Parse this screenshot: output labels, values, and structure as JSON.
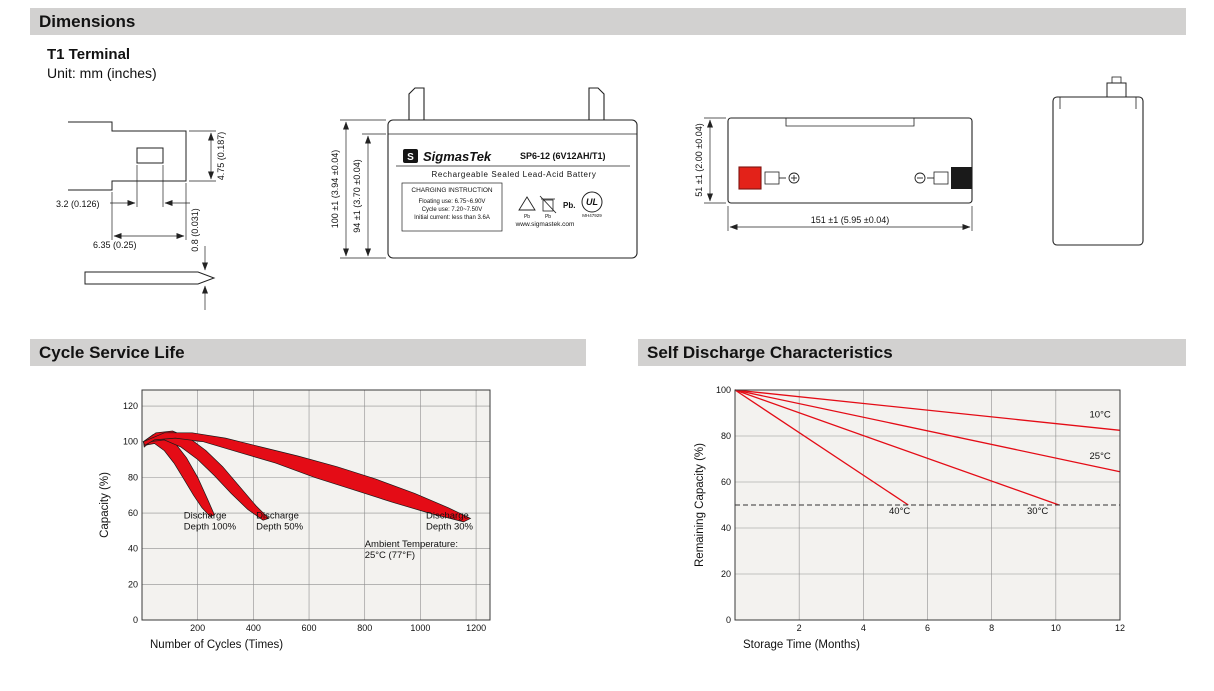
{
  "page": {
    "section_dimensions": "Dimensions",
    "section_cycle": "Cycle Service Life",
    "section_self_discharge": "Self Discharge Characteristics",
    "terminal_type": "T1 Terminal",
    "unit_note": "Unit: mm (inches)"
  },
  "drawings": {
    "terminal_detail": {
      "dim_height": "4.75 (0.187)",
      "dim_offset": "3.2 (0.126)",
      "dim_width": "6.35 (0.25)",
      "dim_thickness": "0.8 (0.031)"
    },
    "front_view": {
      "logo_letter": "S",
      "brand": "SigmasTek",
      "model": "SP6-12 (6V12AH/T1)",
      "product_type": "Rechargeable Sealed Lead-Acid Battery",
      "charging_title": "CHARGING INSTRUCTION",
      "charging_lines": [
        "Floating use: 6.75~6.90V",
        "Cycle use: 7.20~7.50V",
        "Initial current: less than 3.6A"
      ],
      "pb_small_1": "Pb",
      "pb_small_2": "Pb",
      "pb_bold": "Pb.",
      "ul_text": "UL",
      "ul_number": "MH47929",
      "website": "www.sigmastek.com",
      "dim_height_total": "100 ±1 (3.94 ±0.04)",
      "dim_height_case": "94 ±1 (3.70 ±0.04)"
    },
    "side_view": {
      "dim_height": "51 ±1 (2.00 ±0.04)",
      "dim_length": "151 ±1 (5.95 ±0.04)"
    }
  },
  "chart_data": [
    {
      "id": "cycle-service-life",
      "type": "area",
      "title": "Cycle Service Life",
      "xlabel": "Number of Cycles (Times)",
      "ylabel": "Capacity (%)",
      "xlim": [
        0,
        1250
      ],
      "ylim": [
        0,
        129
      ],
      "xticks": [
        200,
        400,
        600,
        800,
        1000,
        1200
      ],
      "yticks": [
        0,
        20,
        40,
        60,
        80,
        100,
        120
      ],
      "grid": true,
      "legend_position": "none",
      "color": "#e40c16",
      "bands": [
        {
          "name": "Discharge Depth 100%",
          "points": [
            [
              5,
              100
            ],
            [
              40,
              104
            ],
            [
              80,
              104
            ],
            [
              120,
              99
            ],
            [
              160,
              91
            ],
            [
              200,
              80
            ],
            [
              235,
              68
            ],
            [
              260,
              59
            ],
            [
              245,
              58
            ],
            [
              215,
              63
            ],
            [
              185,
              70
            ],
            [
              150,
              79
            ],
            [
              115,
              88
            ],
            [
              80,
              95
            ],
            [
              45,
              99
            ],
            [
              10,
              98
            ]
          ]
        },
        {
          "name": "Discharge Depth 50%",
          "points": [
            [
              5,
              100
            ],
            [
              50,
              105
            ],
            [
              110,
              106
            ],
            [
              170,
              102
            ],
            [
              230,
              95
            ],
            [
              290,
              86
            ],
            [
              350,
              75
            ],
            [
              410,
              64
            ],
            [
              455,
              57
            ],
            [
              435,
              56
            ],
            [
              380,
              62
            ],
            [
              320,
              71
            ],
            [
              260,
              81
            ],
            [
              200,
              90
            ],
            [
              140,
              97
            ],
            [
              80,
              101
            ],
            [
              30,
              100
            ],
            [
              8,
              97
            ]
          ]
        },
        {
          "name": "Discharge Depth 30%",
          "points": [
            [
              5,
              100
            ],
            [
              80,
              105
            ],
            [
              180,
              105
            ],
            [
              300,
              102
            ],
            [
              430,
              97
            ],
            [
              560,
              92
            ],
            [
              700,
              86
            ],
            [
              840,
              79
            ],
            [
              980,
              71
            ],
            [
              1100,
              63
            ],
            [
              1180,
              57
            ],
            [
              1155,
              55
            ],
            [
              1030,
              60
            ],
            [
              900,
              66
            ],
            [
              760,
              73
            ],
            [
              620,
              80
            ],
            [
              480,
              88
            ],
            [
              350,
              94
            ],
            [
              220,
              100
            ],
            [
              120,
              102
            ],
            [
              45,
              101
            ],
            [
              10,
              98
            ]
          ]
        }
      ],
      "annotations": [
        {
          "text_lines": [
            "Discharge",
            "Depth 100%"
          ],
          "x": 150,
          "y": 57
        },
        {
          "text_lines": [
            "Discharge",
            "Depth 50%"
          ],
          "x": 410,
          "y": 57
        },
        {
          "text_lines": [
            "Discharge",
            "Depth 30%"
          ],
          "x": 1020,
          "y": 57
        },
        {
          "text_lines": [
            "Ambient Temperature:",
            "25°C (77°F)"
          ],
          "x": 800,
          "y": 41
        }
      ]
    },
    {
      "id": "self-discharge",
      "type": "line",
      "title": "Self Discharge Characteristics",
      "xlabel": "Storage Time (Months)",
      "ylabel": "Remaining Capacity (%)",
      "xlim": [
        0,
        12
      ],
      "ylim": [
        0,
        100
      ],
      "xticks": [
        2,
        4,
        6,
        8,
        10,
        12
      ],
      "yticks": [
        0,
        20,
        40,
        60,
        80,
        100
      ],
      "grid": true,
      "legend_position": "inline-labels",
      "color": "#e40c16",
      "lines": [
        {
          "name": "10°C",
          "points": [
            [
              0,
              100
            ],
            [
              12,
              82.5
            ]
          ]
        },
        {
          "name": "25°C",
          "points": [
            [
              0,
              100
            ],
            [
              12,
              64.5
            ]
          ]
        },
        {
          "name": "30°C",
          "points": [
            [
              0,
              100
            ],
            [
              10.1,
              50
            ]
          ]
        },
        {
          "name": "40°C",
          "points": [
            [
              0,
              100
            ],
            [
              5.4,
              50
            ]
          ]
        },
        {
          "name": "50% reference",
          "dash": true,
          "points": [
            [
              0,
              50
            ],
            [
              12,
              50
            ]
          ]
        }
      ],
      "annotations": [
        {
          "text_lines": [
            "10°C"
          ],
          "x": 11.05,
          "y": 88
        },
        {
          "text_lines": [
            "25°C"
          ],
          "x": 11.05,
          "y": 70
        },
        {
          "text_lines": [
            "30°C"
          ],
          "x": 9.1,
          "y": 46
        },
        {
          "text_lines": [
            "40°C"
          ],
          "x": 4.8,
          "y": 46
        }
      ]
    }
  ]
}
